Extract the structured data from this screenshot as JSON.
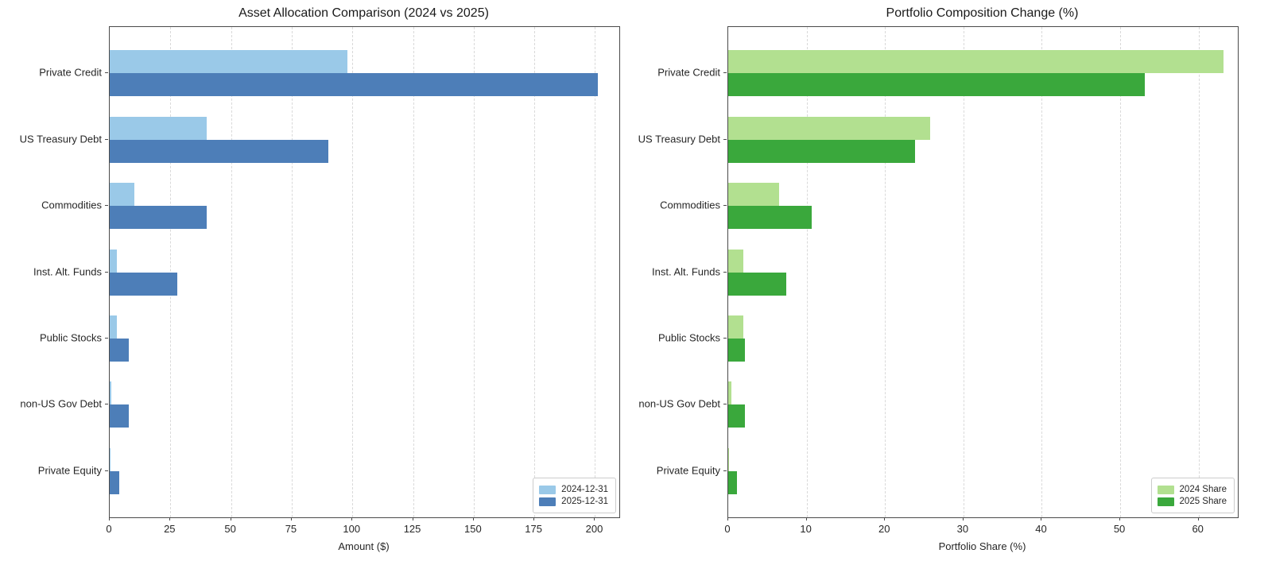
{
  "figure": {
    "background": "#ffffff"
  },
  "chart_data": [
    {
      "type": "bar",
      "orientation": "horizontal",
      "title": "Asset Allocation Comparison (2024 vs 2025)",
      "xlabel": "Amount ($)",
      "ylabel": "",
      "categories": [
        "Private Credit",
        "US Treasury Debt",
        "Commodities",
        "Inst. Alt. Funds",
        "Public Stocks",
        "non-US Gov Debt",
        "Private Equity"
      ],
      "series": [
        {
          "name": "2024-12-31",
          "color": "#9ac9e8",
          "values": [
            98,
            40,
            10,
            3,
            3,
            0.6,
            0.2
          ]
        },
        {
          "name": "2025-12-31",
          "color": "#4d7eb8",
          "values": [
            201,
            90,
            40,
            28,
            8,
            8,
            4
          ]
        }
      ],
      "xticks": [
        0,
        25,
        50,
        75,
        100,
        125,
        150,
        175,
        200
      ],
      "xlim": [
        0,
        210
      ],
      "grid": "vertical-dashed",
      "legend_position": "lower right"
    },
    {
      "type": "bar",
      "orientation": "horizontal",
      "title": "Portfolio Composition Change (%)",
      "xlabel": "Portfolio Share (%)",
      "ylabel": "",
      "categories": [
        "Private Credit",
        "US Treasury Debt",
        "Commodities",
        "Inst. Alt. Funds",
        "Public Stocks",
        "non-US Gov Debt",
        "Private Equity"
      ],
      "series": [
        {
          "name": "2024 Share",
          "color": "#b2e090",
          "values": [
            63.2,
            25.8,
            6.5,
            1.9,
            1.9,
            0.4,
            0.1
          ]
        },
        {
          "name": "2025 Share",
          "color": "#3aa83c",
          "values": [
            53.1,
            23.8,
            10.6,
            7.4,
            2.1,
            2.1,
            1.1
          ]
        }
      ],
      "xticks": [
        0,
        10,
        20,
        30,
        40,
        50,
        60
      ],
      "xlim": [
        0,
        65
      ],
      "grid": "vertical-dashed",
      "legend_position": "lower right"
    }
  ]
}
